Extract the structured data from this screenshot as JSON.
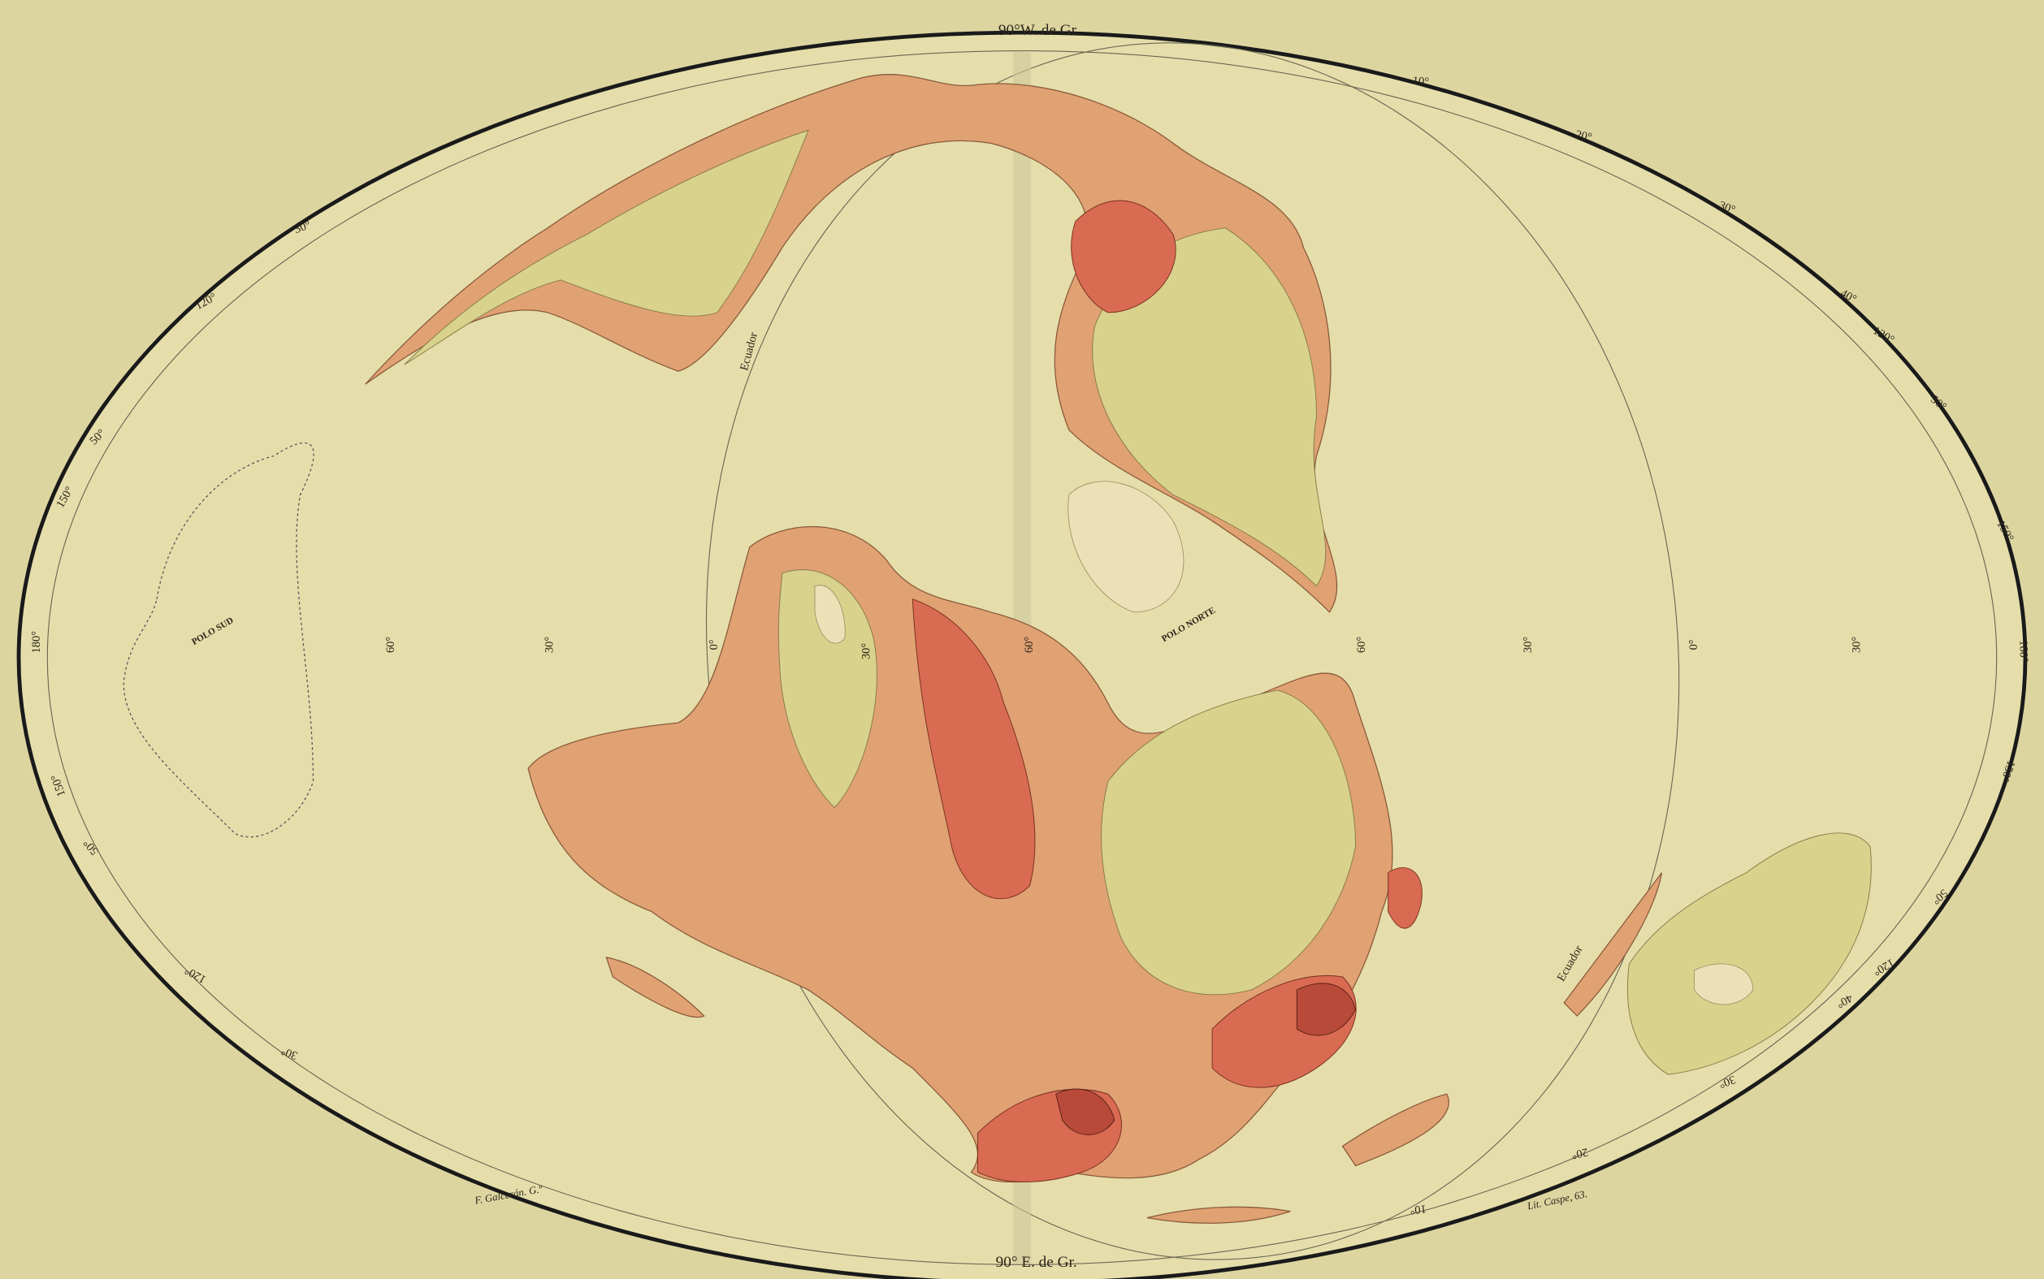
{
  "map": {
    "top_label": "90°W. de Gr.",
    "bottom_label": "90° E. de Gr.",
    "equator_labels": [
      "Ecuador",
      "Ecuador"
    ],
    "pole_labels": [
      "POLO SUD",
      "POLO NORTE"
    ],
    "credits": [
      "F. Galcerán. G.º",
      "Lit. Caspe, 63."
    ],
    "degree_labels": [
      "10°",
      "20°",
      "30°",
      "40°",
      "120°",
      "50°",
      "150°",
      "180°",
      "150°",
      "50°",
      "120°",
      "40°",
      "30°",
      "20°",
      "10°",
      "30°",
      "120°",
      "50°",
      "150°",
      "180°",
      "150°",
      "50°",
      "120°",
      "30°",
      "60°",
      "30°",
      "0°",
      "30°",
      "60°",
      "60°",
      "30°",
      "0°",
      "30°"
    ]
  }
}
